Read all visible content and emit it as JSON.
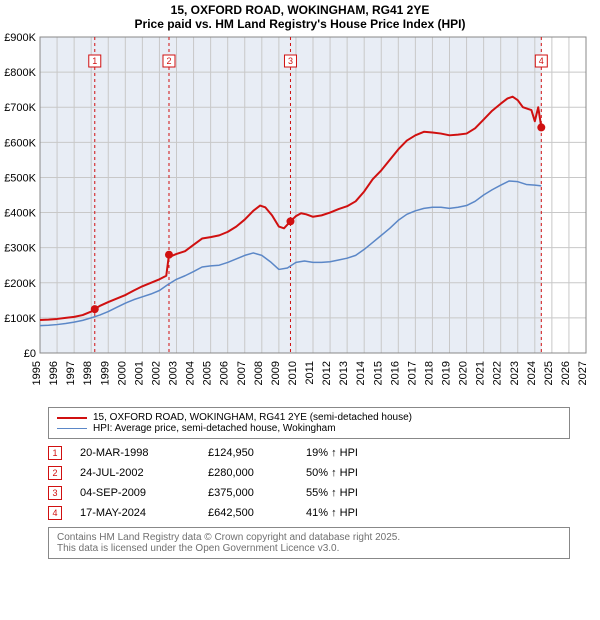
{
  "titles": {
    "line1": "15, OXFORD ROAD, WOKINGHAM, RG41 2YE",
    "line2": "Price paid vs. HM Land Registry's House Price Index (HPI)"
  },
  "chart": {
    "type": "line",
    "background_color": "#ffffff",
    "plot_bg_left": "#e8edf5",
    "plot_bg_left_end_year": 2024.4,
    "grid_color": "#c8c8c8",
    "x": {
      "min": 1995,
      "max": 2027,
      "tick_step": 1,
      "tick_fontsize": 11
    },
    "y": {
      "min": 0,
      "max": 900000,
      "tick_step": 100000,
      "tick_fmt": "£{k}K",
      "tick_fontsize": 11
    },
    "series": [
      {
        "name": "price_paid",
        "color": "#d01010",
        "width": 2,
        "label": "15, OXFORD ROAD, WOKINGHAM, RG41 2YE (semi-detached house)",
        "points": [
          [
            1995.0,
            94000
          ],
          [
            1995.5,
            95000
          ],
          [
            1996.0,
            97000
          ],
          [
            1996.5,
            100000
          ],
          [
            1997.0,
            103000
          ],
          [
            1997.5,
            108000
          ],
          [
            1998.0,
            118000
          ],
          [
            1998.21,
            124950
          ],
          [
            1998.5,
            134000
          ],
          [
            1999.0,
            145000
          ],
          [
            1999.5,
            155000
          ],
          [
            2000.0,
            165000
          ],
          [
            2000.5,
            178000
          ],
          [
            2001.0,
            190000
          ],
          [
            2001.5,
            200000
          ],
          [
            2002.0,
            210000
          ],
          [
            2002.4,
            220000
          ],
          [
            2002.56,
            280000
          ],
          [
            2002.7,
            276000
          ],
          [
            2003.0,
            282000
          ],
          [
            2003.5,
            290000
          ],
          [
            2004.0,
            308000
          ],
          [
            2004.5,
            326000
          ],
          [
            2005.0,
            330000
          ],
          [
            2005.5,
            335000
          ],
          [
            2006.0,
            345000
          ],
          [
            2006.5,
            360000
          ],
          [
            2007.0,
            380000
          ],
          [
            2007.5,
            405000
          ],
          [
            2007.9,
            420000
          ],
          [
            2008.2,
            415000
          ],
          [
            2008.6,
            392000
          ],
          [
            2009.0,
            360000
          ],
          [
            2009.3,
            355000
          ],
          [
            2009.68,
            375000
          ],
          [
            2010.0,
            390000
          ],
          [
            2010.3,
            398000
          ],
          [
            2010.6,
            395000
          ],
          [
            2011.0,
            388000
          ],
          [
            2011.5,
            392000
          ],
          [
            2012.0,
            400000
          ],
          [
            2012.5,
            410000
          ],
          [
            2013.0,
            418000
          ],
          [
            2013.5,
            432000
          ],
          [
            2014.0,
            460000
          ],
          [
            2014.5,
            495000
          ],
          [
            2015.0,
            520000
          ],
          [
            2015.5,
            550000
          ],
          [
            2016.0,
            580000
          ],
          [
            2016.5,
            605000
          ],
          [
            2017.0,
            620000
          ],
          [
            2017.5,
            630000
          ],
          [
            2018.0,
            628000
          ],
          [
            2018.5,
            625000
          ],
          [
            2019.0,
            620000
          ],
          [
            2019.5,
            622000
          ],
          [
            2020.0,
            625000
          ],
          [
            2020.5,
            640000
          ],
          [
            2021.0,
            665000
          ],
          [
            2021.5,
            690000
          ],
          [
            2022.0,
            710000
          ],
          [
            2022.4,
            725000
          ],
          [
            2022.7,
            730000
          ],
          [
            2023.0,
            720000
          ],
          [
            2023.3,
            700000
          ],
          [
            2023.6,
            695000
          ],
          [
            2023.8,
            692000
          ],
          [
            2024.0,
            660000
          ],
          [
            2024.2,
            700000
          ],
          [
            2024.38,
            642500
          ]
        ]
      },
      {
        "name": "hpi",
        "color": "#5b87c7",
        "width": 1.5,
        "label": "HPI: Average price, semi-detached house, Wokingham",
        "points": [
          [
            1995.0,
            78000
          ],
          [
            1995.5,
            79000
          ],
          [
            1996.0,
            81000
          ],
          [
            1996.5,
            84000
          ],
          [
            1997.0,
            88000
          ],
          [
            1997.5,
            93000
          ],
          [
            1998.0,
            100000
          ],
          [
            1998.5,
            108000
          ],
          [
            1999.0,
            118000
          ],
          [
            1999.5,
            130000
          ],
          [
            2000.0,
            142000
          ],
          [
            2000.5,
            152000
          ],
          [
            2001.0,
            160000
          ],
          [
            2001.5,
            168000
          ],
          [
            2002.0,
            178000
          ],
          [
            2002.5,
            195000
          ],
          [
            2003.0,
            210000
          ],
          [
            2003.5,
            220000
          ],
          [
            2004.0,
            232000
          ],
          [
            2004.5,
            245000
          ],
          [
            2005.0,
            248000
          ],
          [
            2005.5,
            250000
          ],
          [
            2006.0,
            258000
          ],
          [
            2006.5,
            268000
          ],
          [
            2007.0,
            278000
          ],
          [
            2007.5,
            285000
          ],
          [
            2008.0,
            278000
          ],
          [
            2008.5,
            260000
          ],
          [
            2009.0,
            238000
          ],
          [
            2009.5,
            242000
          ],
          [
            2010.0,
            258000
          ],
          [
            2010.5,
            262000
          ],
          [
            2011.0,
            258000
          ],
          [
            2011.5,
            258000
          ],
          [
            2012.0,
            260000
          ],
          [
            2012.5,
            265000
          ],
          [
            2013.0,
            270000
          ],
          [
            2013.5,
            278000
          ],
          [
            2014.0,
            295000
          ],
          [
            2014.5,
            315000
          ],
          [
            2015.0,
            335000
          ],
          [
            2015.5,
            355000
          ],
          [
            2016.0,
            378000
          ],
          [
            2016.5,
            395000
          ],
          [
            2017.0,
            405000
          ],
          [
            2017.5,
            412000
          ],
          [
            2018.0,
            415000
          ],
          [
            2018.5,
            415000
          ],
          [
            2019.0,
            412000
          ],
          [
            2019.5,
            415000
          ],
          [
            2020.0,
            420000
          ],
          [
            2020.5,
            432000
          ],
          [
            2021.0,
            450000
          ],
          [
            2021.5,
            465000
          ],
          [
            2022.0,
            478000
          ],
          [
            2022.5,
            490000
          ],
          [
            2023.0,
            488000
          ],
          [
            2023.5,
            480000
          ],
          [
            2024.0,
            478000
          ],
          [
            2024.38,
            476000
          ]
        ]
      }
    ],
    "sales": [
      {
        "n": 1,
        "year": 1998.21,
        "price": 124950,
        "date": "20-MAR-1998",
        "price_str": "£124,950",
        "hpi_str": "19% ↑ HPI"
      },
      {
        "n": 2,
        "year": 2002.56,
        "price": 280000,
        "date": "24-JUL-2002",
        "price_str": "£280,000",
        "hpi_str": "50% ↑ HPI"
      },
      {
        "n": 3,
        "year": 2009.68,
        "price": 375000,
        "date": "04-SEP-2009",
        "price_str": "£375,000",
        "hpi_str": "55% ↑ HPI"
      },
      {
        "n": 4,
        "year": 2024.38,
        "price": 642500,
        "date": "17-MAY-2024",
        "price_str": "£642,500",
        "hpi_str": "41% ↑ HPI"
      }
    ],
    "marker_box": {
      "border_color": "#d01010",
      "text_color": "#d01010",
      "bg": "#ffffff",
      "size": 12,
      "fontsize": 9
    },
    "sale_point": {
      "radius": 4,
      "fill": "#d01010"
    },
    "sale_line": {
      "color": "#d01010",
      "dash": "3,3",
      "width": 1
    }
  },
  "legend": {
    "items": [
      {
        "color": "#d01010",
        "width": 2,
        "text": "15, OXFORD ROAD, WOKINGHAM, RG41 2YE (semi-detached house)"
      },
      {
        "color": "#5b87c7",
        "width": 1.5,
        "text": "HPI: Average price, semi-detached house, Wokingham"
      }
    ]
  },
  "footer": {
    "line1": "Contains HM Land Registry data © Crown copyright and database right 2025.",
    "line2": "This data is licensed under the Open Government Licence v3.0."
  }
}
